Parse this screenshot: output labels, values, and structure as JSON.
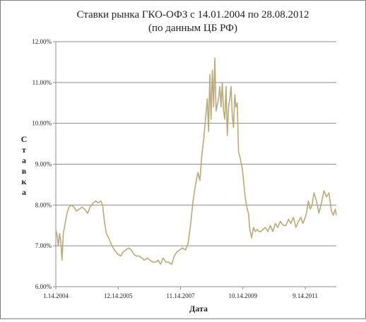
{
  "chart_data": {
    "type": "line",
    "title": "Ставки рынка ГКО-ОФЗ с 14.01.2004 по 28.08.2012",
    "subtitle": "(по данным ЦБ РФ)",
    "xlabel": "Дата",
    "ylabel": "Ставка",
    "ylim": [
      6.0,
      12.0
    ],
    "xlim": [
      "2004-01-14",
      "2012-08-28"
    ],
    "grid": true,
    "legend": "none",
    "y_ticks": [
      "6.00%",
      "7.00%",
      "8.00%",
      "9.00%",
      "10.00%",
      "11.00%",
      "12.00%"
    ],
    "y_tick_values": [
      6,
      7,
      8,
      9,
      10,
      11,
      12
    ],
    "x_ticks": [
      "1.14.2004",
      "12.14.2005",
      "11.14.2007",
      "10.14.2009",
      "9.14.2011"
    ],
    "x_tick_dates": [
      "2004-01-14",
      "2005-12-14",
      "2007-11-14",
      "2009-10-14",
      "2011-09-14"
    ],
    "colors": {
      "series": "#b8aa79",
      "grid": "#8c8c8c",
      "axis": "#8c8c8c"
    },
    "series": [
      {
        "x": [
          "2004-01-14",
          "2004-01-28",
          "2004-02-11",
          "2004-02-25",
          "2004-03-10",
          "2004-03-24",
          "2004-04-07",
          "2004-04-28",
          "2004-05-19",
          "2004-06-09",
          "2004-07-07",
          "2004-08-04",
          "2004-09-01",
          "2004-10-06",
          "2004-11-03",
          "2004-12-01",
          "2005-01-05",
          "2005-02-02",
          "2005-03-09",
          "2005-04-06",
          "2005-05-04",
          "2005-06-01",
          "2005-06-22",
          "2005-07-13",
          "2005-08-03",
          "2005-09-07",
          "2005-10-05",
          "2005-11-02",
          "2005-12-07",
          "2006-01-11",
          "2006-02-08",
          "2006-03-08",
          "2006-04-12",
          "2006-05-10",
          "2006-06-07",
          "2006-07-05",
          "2006-08-09",
          "2006-09-06",
          "2006-10-04",
          "2006-11-08",
          "2006-12-06",
          "2007-01-10",
          "2007-02-07",
          "2007-03-07",
          "2007-04-04",
          "2007-05-02",
          "2007-06-06",
          "2007-07-04",
          "2007-08-08",
          "2007-09-05",
          "2007-10-03",
          "2007-11-07",
          "2007-12-05",
          "2008-01-09",
          "2008-02-06",
          "2008-03-05",
          "2008-04-02",
          "2008-04-30",
          "2008-05-28",
          "2008-06-18",
          "2008-07-09",
          "2008-07-30",
          "2008-08-20",
          "2008-09-10",
          "2008-09-24",
          "2008-10-08",
          "2008-10-22",
          "2008-11-05",
          "2008-11-19",
          "2008-12-03",
          "2008-12-17",
          "2009-01-14",
          "2009-01-28",
          "2009-02-11",
          "2009-02-25",
          "2009-03-11",
          "2009-03-25",
          "2009-04-08",
          "2009-04-22",
          "2009-05-06",
          "2009-05-20",
          "2009-06-03",
          "2009-06-17",
          "2009-07-01",
          "2009-07-15",
          "2009-07-29",
          "2009-08-12",
          "2009-08-26",
          "2009-09-09",
          "2009-09-23",
          "2009-10-07",
          "2009-10-21",
          "2009-11-04",
          "2009-11-18",
          "2009-12-02",
          "2009-12-16",
          "2009-12-30",
          "2010-01-20",
          "2010-02-10",
          "2010-03-03",
          "2010-03-24",
          "2010-04-14",
          "2010-05-05",
          "2010-05-26",
          "2010-06-23",
          "2010-07-21",
          "2010-08-18",
          "2010-09-15",
          "2010-10-13",
          "2010-11-10",
          "2010-12-08",
          "2011-01-12",
          "2011-02-09",
          "2011-03-09",
          "2011-04-06",
          "2011-05-04",
          "2011-06-01",
          "2011-06-29",
          "2011-07-27",
          "2011-08-17",
          "2011-09-07",
          "2011-09-28",
          "2011-10-19",
          "2011-11-09",
          "2011-11-30",
          "2011-12-21",
          "2012-01-18",
          "2012-02-15",
          "2012-03-14",
          "2012-04-11",
          "2012-05-09",
          "2012-06-06",
          "2012-07-04",
          "2012-07-25",
          "2012-08-15",
          "2012-08-28"
        ],
        "values": [
          7.4,
          7.25,
          7.0,
          7.3,
          7.1,
          6.65,
          7.3,
          7.55,
          7.8,
          7.95,
          8.0,
          7.95,
          7.85,
          7.9,
          7.95,
          7.9,
          7.8,
          7.95,
          8.05,
          8.1,
          8.05,
          8.1,
          8.0,
          7.6,
          7.3,
          7.15,
          7.0,
          6.9,
          6.8,
          6.75,
          6.85,
          6.9,
          6.95,
          6.9,
          6.8,
          6.75,
          6.75,
          6.7,
          6.65,
          6.7,
          6.65,
          6.6,
          6.6,
          6.65,
          6.55,
          6.7,
          6.6,
          6.6,
          6.55,
          6.75,
          6.85,
          6.9,
          6.95,
          6.9,
          7.05,
          7.5,
          8.1,
          8.5,
          8.8,
          8.6,
          9.2,
          9.6,
          10.1,
          10.6,
          9.8,
          11.2,
          10.1,
          11.3,
          10.4,
          11.6,
          10.3,
          10.6,
          10.9,
          10.4,
          11.0,
          10.3,
          10.1,
          10.9,
          9.7,
          10.4,
          10.6,
          10.9,
          10.2,
          9.9,
          10.7,
          10.4,
          10.5,
          9.3,
          9.2,
          9.05,
          8.9,
          8.6,
          8.3,
          8.05,
          7.9,
          7.8,
          7.4,
          7.2,
          7.45,
          7.35,
          7.4,
          7.35,
          7.35,
          7.4,
          7.45,
          7.35,
          7.5,
          7.35,
          7.55,
          7.45,
          7.6,
          7.5,
          7.5,
          7.65,
          7.55,
          7.7,
          7.45,
          7.6,
          7.7,
          7.55,
          7.65,
          7.8,
          8.1,
          7.9,
          8.0,
          8.3,
          8.1,
          7.8,
          8.05,
          8.35,
          8.2,
          8.3,
          7.85,
          7.75,
          7.9,
          7.75
        ]
      }
    ]
  }
}
